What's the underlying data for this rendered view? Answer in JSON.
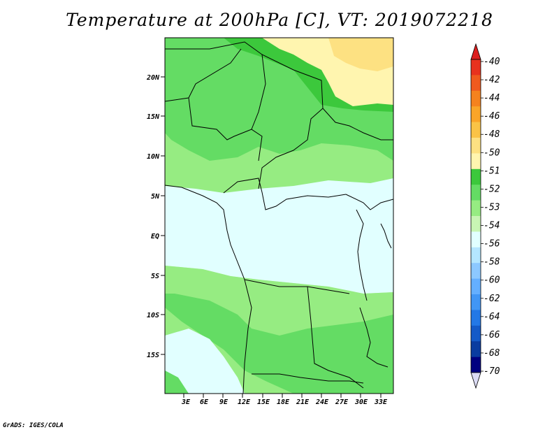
{
  "title": "Temperature at 200hPa [C], VT: 2019072218",
  "credit": "GrADS: IGES/COLA",
  "map": {
    "lat_ticks": [
      "20N",
      "15N",
      "10N",
      "5N",
      "EQ",
      "5S",
      "10S",
      "15S"
    ],
    "lon_ticks": [
      "3E",
      "6E",
      "9E",
      "12E",
      "15E",
      "18E",
      "21E",
      "24E",
      "27E",
      "30E",
      "33E"
    ]
  },
  "colorbar": {
    "labels": [
      "-40",
      "-42",
      "-44",
      "-46",
      "-48",
      "-50",
      "-51",
      "-52",
      "-53",
      "-54",
      "-56",
      "-58",
      "-60",
      "-62",
      "-64",
      "-66",
      "-68",
      "-70"
    ],
    "colors": [
      "#e8321e",
      "#f05a1e",
      "#f5821e",
      "#faa528",
      "#fac346",
      "#fde182",
      "#fff5af",
      "#3cc83c",
      "#64dc64",
      "#96ec82",
      "#c8f5b4",
      "#e1ffff",
      "#b4e6ff",
      "#8cc8ff",
      "#64afff",
      "#4196f5",
      "#2378e6",
      "#145ac8",
      "#0a3ca0",
      "#000080"
    ],
    "top_arrow_color": "#dc1e1e",
    "bottom_arrow_color": "#dcdcf5"
  }
}
